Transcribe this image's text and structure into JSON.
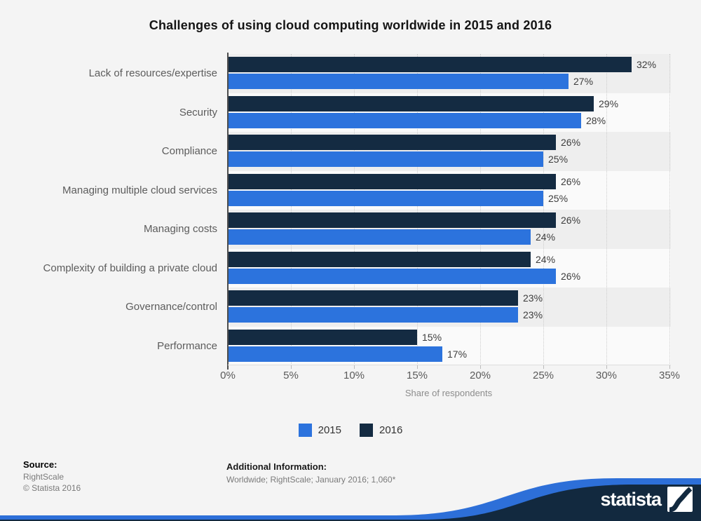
{
  "title": "Challenges of using cloud computing worldwide in 2015 and 2016",
  "chart_data": {
    "type": "bar",
    "orientation": "horizontal",
    "title": "Challenges of using cloud computing worldwide in 2015 and 2016",
    "categories": [
      "Lack of resources/expertise",
      "Security",
      "Compliance",
      "Managing multiple cloud services",
      "Managing costs",
      "Complexity of building a private cloud",
      "Governance/control",
      "Performance"
    ],
    "series": [
      {
        "name": "2015",
        "color": "#2c73dd",
        "values": [
          27,
          28,
          25,
          25,
          24,
          26,
          23,
          17
        ]
      },
      {
        "name": "2016",
        "color": "#142b42",
        "values": [
          32,
          29,
          26,
          26,
          26,
          24,
          23,
          15
        ]
      }
    ],
    "bar_order_top_to_bottom": [
      "2016",
      "2015"
    ],
    "value_suffix": "%",
    "xlabel": "Share of respondents",
    "ylabel": "",
    "xlim": [
      0,
      35
    ],
    "x_ticks": [
      "0%",
      "5%",
      "10%",
      "15%",
      "20%",
      "25%",
      "30%",
      "35%"
    ],
    "grid": "vertical-dotted",
    "legend_position": "bottom-center",
    "row_stripe_colors": [
      "#eeeeee",
      "#fafafa"
    ]
  },
  "legend": {
    "items": [
      {
        "label": "2015",
        "color": "#2c73dd"
      },
      {
        "label": "2016",
        "color": "#142b42"
      }
    ]
  },
  "footer": {
    "source_label": "Source:",
    "source_name": "RightScale",
    "copyright": "© Statista 2016",
    "additional_label": "Additional Information:",
    "additional_text": "Worldwide; RightScale; January 2016; 1,060*"
  },
  "branding": {
    "logo_text": "statista",
    "logo_icon": "statista-slope-icon",
    "wave_blue": "#2d6fd8",
    "wave_navy": "#12293f"
  }
}
